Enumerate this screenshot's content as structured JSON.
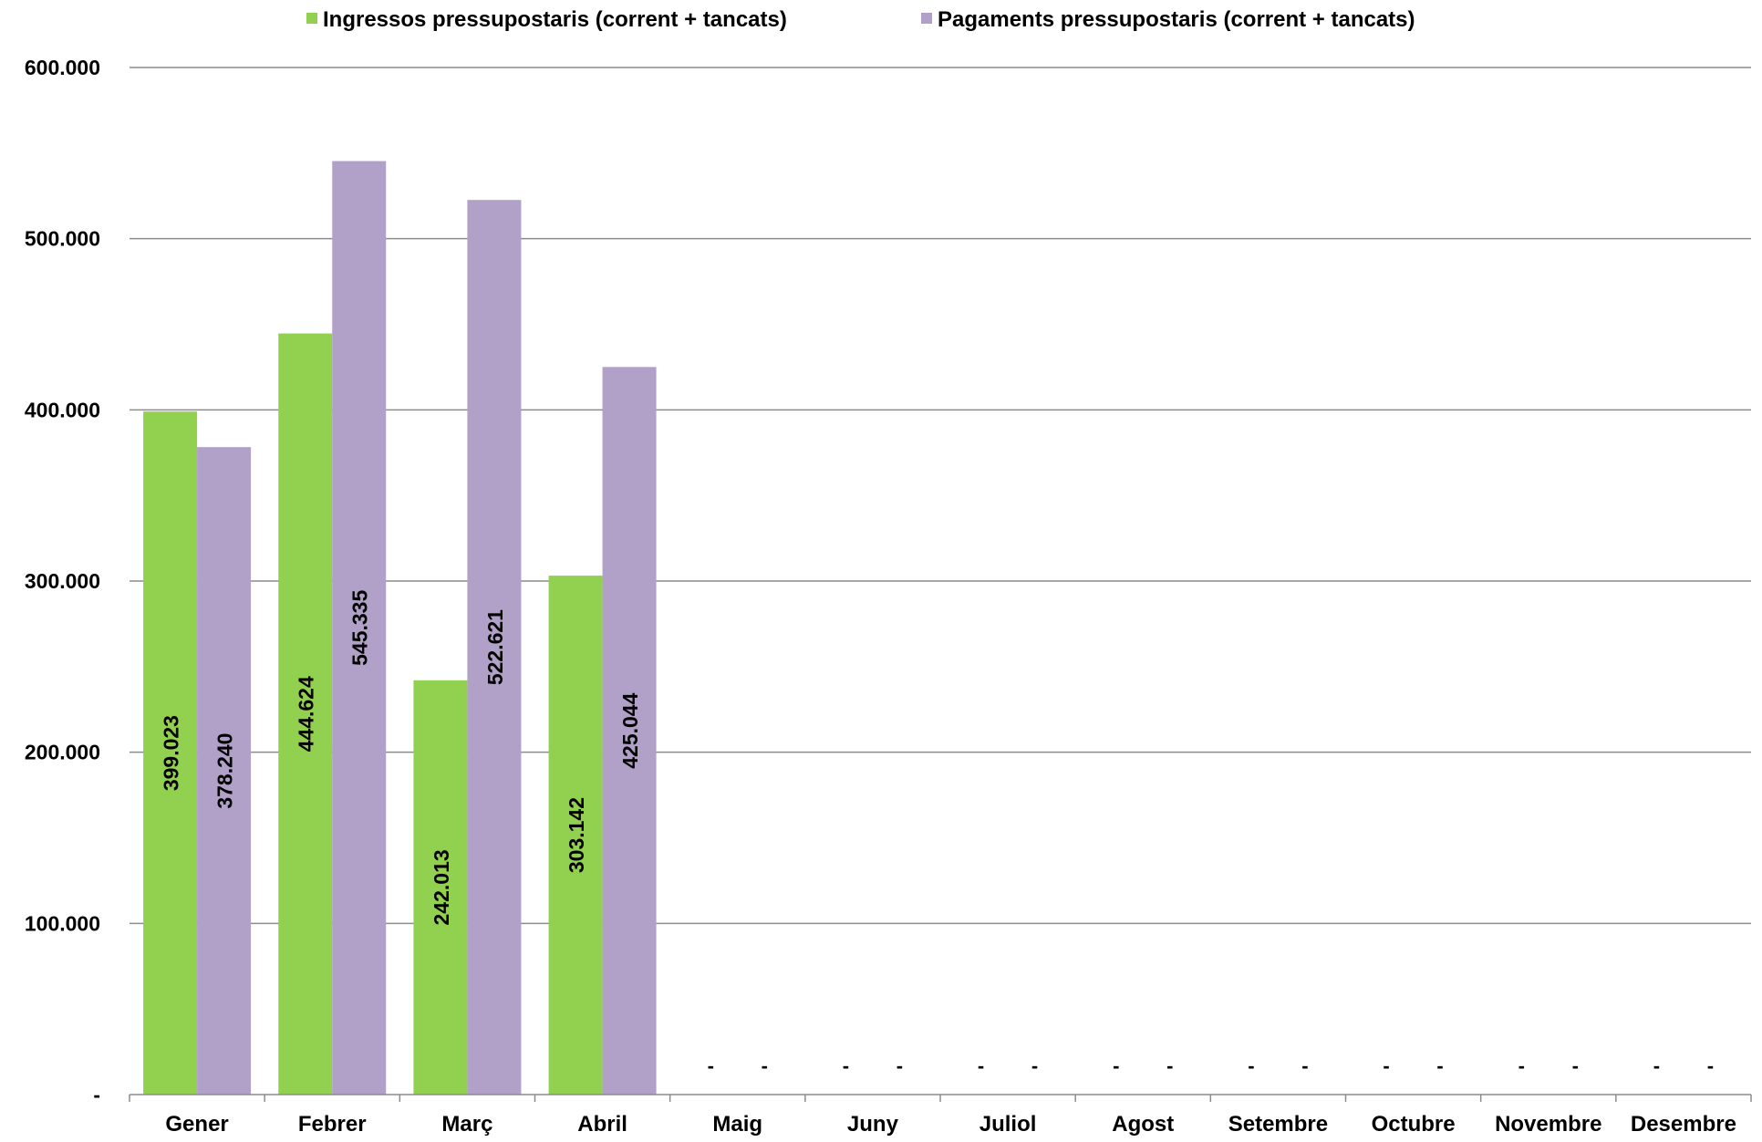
{
  "chart_data": {
    "type": "bar",
    "categories": [
      "Gener",
      "Febrer",
      "Març",
      "Abril",
      "Maig",
      "Juny",
      "Juliol",
      "Agost",
      "Setembre",
      "Octubre",
      "Novembre",
      "Desembre"
    ],
    "series": [
      {
        "name": "Ingressos pressupostaris (corrent + tancats)",
        "color": "#92d050",
        "values": [
          399023,
          444624,
          242013,
          303142,
          0,
          0,
          0,
          0,
          0,
          0,
          0,
          0
        ],
        "labels": [
          "399.023",
          "444.624",
          "242.013",
          "303.142",
          "-",
          "-",
          "-",
          "-",
          "-",
          "-",
          "-",
          "-"
        ]
      },
      {
        "name": "Pagaments pressupostaris (corrent + tancats)",
        "color": "#b1a0c7",
        "values": [
          378240,
          545335,
          522621,
          425044,
          0,
          0,
          0,
          0,
          0,
          0,
          0,
          0
        ],
        "labels": [
          "378.240",
          "545.335",
          "522.621",
          "425.044",
          "-",
          "-",
          "-",
          "-",
          "-",
          "-",
          "-",
          "-"
        ]
      }
    ],
    "yticks": [
      0,
      100000,
      200000,
      300000,
      400000,
      500000,
      600000
    ],
    "ytick_labels": [
      "-",
      "100.000",
      "200.000",
      "300.000",
      "400.000",
      "500.000",
      "600.000"
    ],
    "ylim": [
      0,
      600000
    ],
    "title": "",
    "xlabel": "",
    "ylabel": "",
    "grid": true,
    "legend": "top-center"
  }
}
